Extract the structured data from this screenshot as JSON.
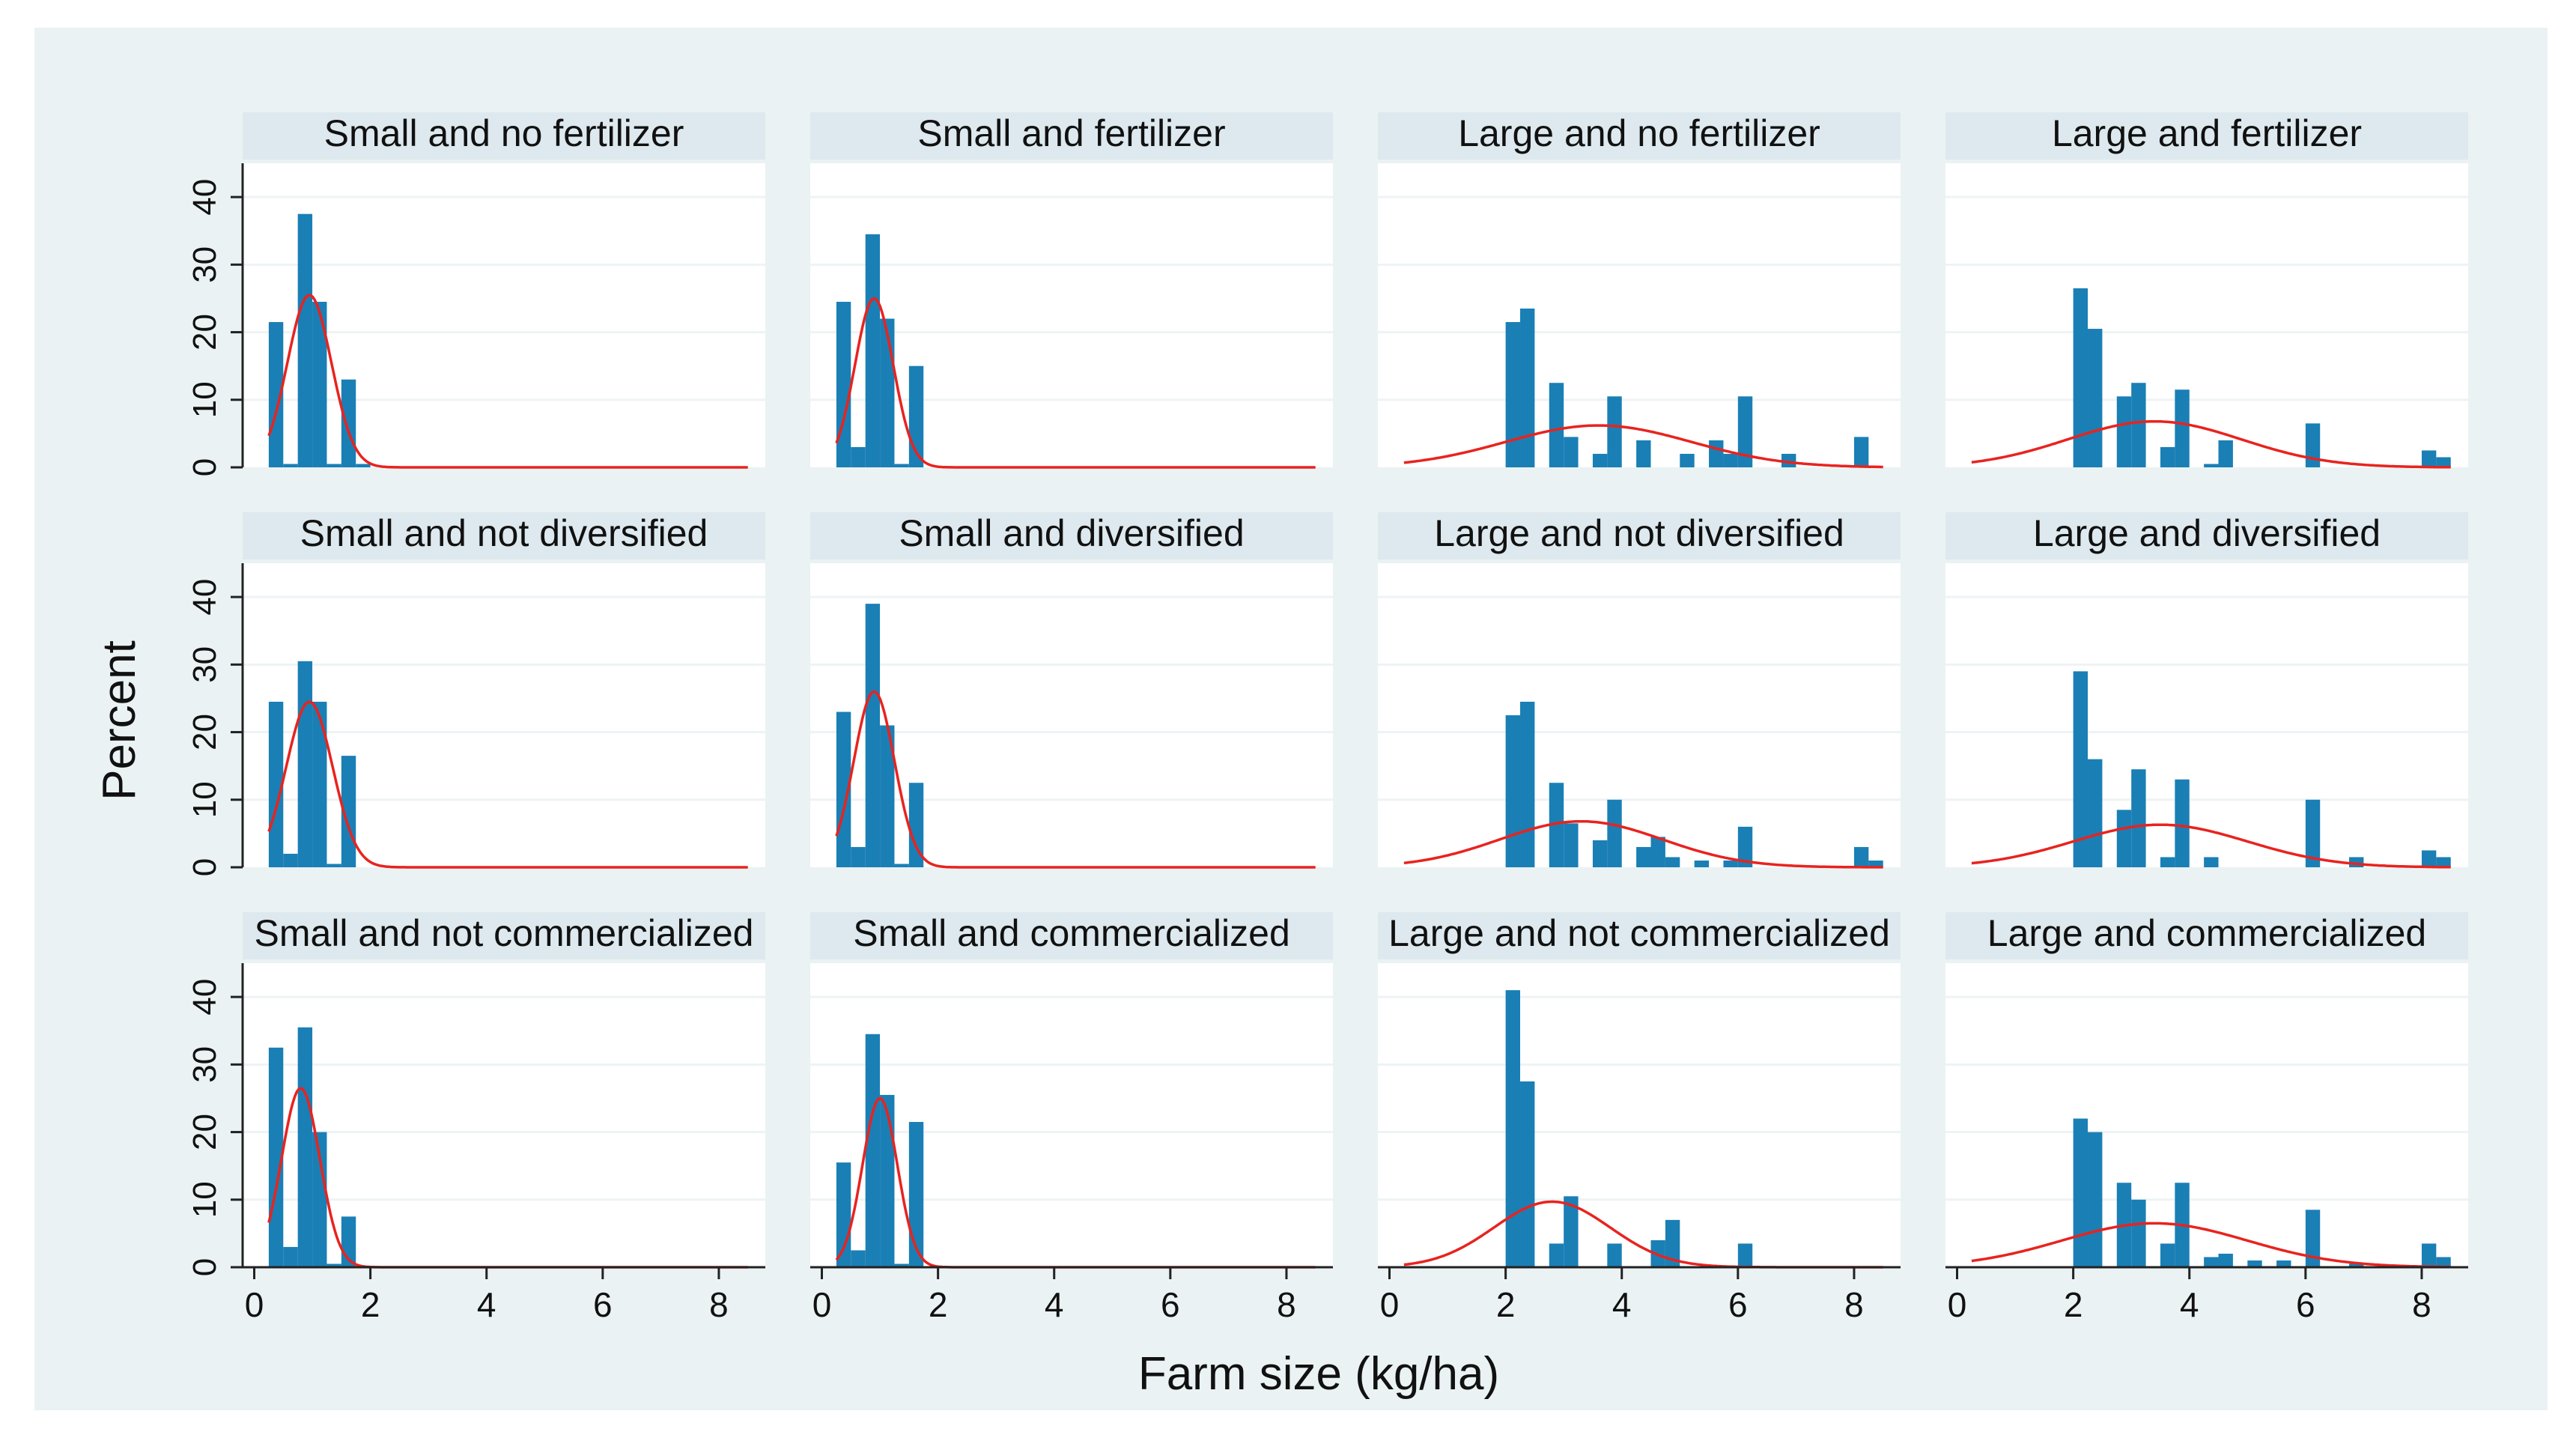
{
  "figure": {
    "xlabel": "Farm size (kg/ha)",
    "ylabel": "Percent",
    "colors": {
      "outer_background": "#ffffff",
      "plot_region": "#eaf2f3",
      "panel_background": "#ffffff",
      "header_background": "#dde9ee",
      "bar": "#1a7fb5",
      "density": "#e8231f",
      "gridline": "#eef3f5",
      "axis": "#222222",
      "text": "#111111"
    }
  },
  "chart_data": {
    "type": "bar",
    "subtype": "histogram-with-normal-density",
    "title": "",
    "xlabel": "Farm size (kg/ha)",
    "ylabel": "Percent",
    "xlim": [
      -0.2,
      8.8
    ],
    "ylim": [
      0,
      45
    ],
    "xticks": [
      0,
      2,
      4,
      6,
      8
    ],
    "yticks": [
      0,
      10,
      20,
      30,
      40
    ],
    "grid": true,
    "bin_width": 0.25,
    "panels": [
      {
        "title": "Small and no fertilizer",
        "bins": [
          [
            0.25,
            21.5
          ],
          [
            0.5,
            0.5
          ],
          [
            0.75,
            37.5
          ],
          [
            1.0,
            24.5
          ],
          [
            1.25,
            0.5
          ],
          [
            1.5,
            13
          ],
          [
            1.75,
            0.5
          ]
        ],
        "density": {
          "mean": 0.95,
          "sd": 0.38,
          "peak": 25.5
        }
      },
      {
        "title": "Small and fertilizer",
        "bins": [
          [
            0.25,
            24.5
          ],
          [
            0.5,
            3
          ],
          [
            0.75,
            34.5
          ],
          [
            1.0,
            22
          ],
          [
            1.25,
            0.5
          ],
          [
            1.5,
            15
          ]
        ],
        "density": {
          "mean": 0.9,
          "sd": 0.33,
          "peak": 25
        }
      },
      {
        "title": "Large and no fertilizer",
        "bins": [
          [
            2.0,
            21.5
          ],
          [
            2.25,
            23.5
          ],
          [
            2.75,
            12.5
          ],
          [
            3.0,
            4.5
          ],
          [
            3.5,
            2
          ],
          [
            3.75,
            10.5
          ],
          [
            4.25,
            4
          ],
          [
            5.0,
            2
          ],
          [
            5.5,
            4
          ],
          [
            5.75,
            2
          ],
          [
            6.0,
            10.5
          ],
          [
            6.75,
            2
          ],
          [
            8.0,
            4.5
          ]
        ],
        "density": {
          "mean": 3.6,
          "sd": 1.6,
          "peak": 6.2
        }
      },
      {
        "title": "Large and fertilizer",
        "bins": [
          [
            2.0,
            26.5
          ],
          [
            2.25,
            20.5
          ],
          [
            2.75,
            10.5
          ],
          [
            3.0,
            12.5
          ],
          [
            3.5,
            3
          ],
          [
            3.75,
            11.5
          ],
          [
            4.25,
            0.5
          ],
          [
            4.5,
            4
          ],
          [
            6.0,
            6.5
          ],
          [
            8.0,
            2.5
          ],
          [
            8.25,
            1.5
          ]
        ],
        "density": {
          "mean": 3.4,
          "sd": 1.5,
          "peak": 6.8
        }
      },
      {
        "title": "Small and not diversified",
        "bins": [
          [
            0.25,
            24.5
          ],
          [
            0.5,
            2
          ],
          [
            0.75,
            30.5
          ],
          [
            1.0,
            24.5
          ],
          [
            1.25,
            0.5
          ],
          [
            1.5,
            16.5
          ]
        ],
        "density": {
          "mean": 0.95,
          "sd": 0.4,
          "peak": 24.5
        }
      },
      {
        "title": "Small and diversified",
        "bins": [
          [
            0.25,
            23
          ],
          [
            0.5,
            3
          ],
          [
            0.75,
            39
          ],
          [
            1.0,
            21
          ],
          [
            1.25,
            0.5
          ],
          [
            1.5,
            12.5
          ]
        ],
        "density": {
          "mean": 0.9,
          "sd": 0.35,
          "peak": 26
        }
      },
      {
        "title": "Large and not diversified",
        "bins": [
          [
            2.0,
            22.5
          ],
          [
            2.25,
            24.5
          ],
          [
            2.75,
            12.5
          ],
          [
            3.0,
            6.5
          ],
          [
            3.5,
            4
          ],
          [
            3.75,
            10
          ],
          [
            4.25,
            3
          ],
          [
            4.5,
            4.5
          ],
          [
            4.75,
            1.5
          ],
          [
            5.25,
            1
          ],
          [
            5.75,
            1
          ],
          [
            6.0,
            6
          ],
          [
            8.0,
            3
          ],
          [
            8.25,
            1
          ]
        ],
        "density": {
          "mean": 3.3,
          "sd": 1.4,
          "peak": 6.8
        }
      },
      {
        "title": "Large and diversified",
        "bins": [
          [
            2.0,
            29
          ],
          [
            2.25,
            16
          ],
          [
            2.75,
            8.5
          ],
          [
            3.0,
            14.5
          ],
          [
            3.5,
            1.5
          ],
          [
            3.75,
            13
          ],
          [
            4.25,
            1.5
          ],
          [
            6.0,
            10
          ],
          [
            6.75,
            1.5
          ],
          [
            8.0,
            2.5
          ],
          [
            8.25,
            1.5
          ]
        ],
        "density": {
          "mean": 3.5,
          "sd": 1.5,
          "peak": 6.3
        }
      },
      {
        "title": "Small and not commercialized",
        "bins": [
          [
            0.25,
            32.5
          ],
          [
            0.5,
            3
          ],
          [
            0.75,
            35.5
          ],
          [
            1.0,
            20
          ],
          [
            1.25,
            0.5
          ],
          [
            1.5,
            7.5
          ]
        ],
        "density": {
          "mean": 0.8,
          "sd": 0.33,
          "peak": 26.5
        }
      },
      {
        "title": "Small and commercialized",
        "bins": [
          [
            0.25,
            15.5
          ],
          [
            0.5,
            2.5
          ],
          [
            0.75,
            34.5
          ],
          [
            1.0,
            25.5
          ],
          [
            1.25,
            0.5
          ],
          [
            1.5,
            21.5
          ]
        ],
        "density": {
          "mean": 1.0,
          "sd": 0.3,
          "peak": 25
        }
      },
      {
        "title": "Large and not commercialized",
        "bins": [
          [
            2.0,
            41
          ],
          [
            2.25,
            27.5
          ],
          [
            2.75,
            3.5
          ],
          [
            3.0,
            10.5
          ],
          [
            3.75,
            3.5
          ],
          [
            4.5,
            4
          ],
          [
            4.75,
            7
          ],
          [
            6.0,
            3.5
          ]
        ],
        "density": {
          "mean": 2.8,
          "sd": 1.0,
          "peak": 9.7
        }
      },
      {
        "title": "Large and commercialized",
        "bins": [
          [
            2.0,
            22
          ],
          [
            2.25,
            20
          ],
          [
            2.75,
            12.5
          ],
          [
            3.0,
            10
          ],
          [
            3.5,
            3.5
          ],
          [
            3.75,
            12.5
          ],
          [
            4.25,
            1.5
          ],
          [
            4.5,
            2
          ],
          [
            5.0,
            1
          ],
          [
            5.5,
            1
          ],
          [
            6.0,
            8.5
          ],
          [
            6.75,
            0.5
          ],
          [
            8.0,
            3.5
          ],
          [
            8.25,
            1.5
          ]
        ],
        "density": {
          "mean": 3.4,
          "sd": 1.6,
          "peak": 6.5
        }
      }
    ]
  }
}
